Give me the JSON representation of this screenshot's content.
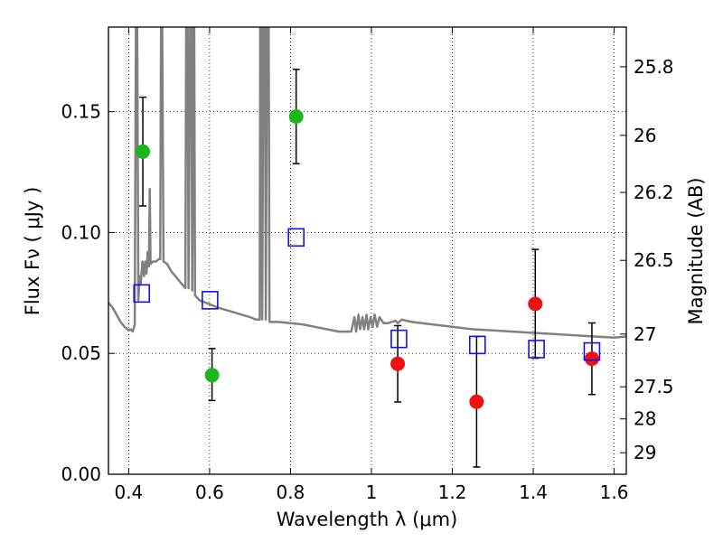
{
  "chart_data": {
    "type": "scatter",
    "xlabel": "Wavelength  λ (μm)",
    "ylabel": "Flux  Fν  ( μJy )",
    "ylabel_right": "Magnitude (AB)",
    "xlim": [
      0.35,
      1.63
    ],
    "ylim": [
      0.0,
      0.185
    ],
    "grid": true,
    "x_ticks": [
      0.4,
      0.6,
      0.8,
      1.0,
      1.2,
      1.4,
      1.6
    ],
    "x_tick_labels": [
      "0.4",
      "0.6",
      "0.8",
      "1",
      "1.2",
      "1.4",
      "1.6"
    ],
    "y_ticks": [
      0.0,
      0.05,
      0.1,
      0.15
    ],
    "y_tick_labels": [
      "0.00",
      "0.05",
      "0.10",
      "0.15"
    ],
    "right_ticks": [
      {
        "label": "25.8",
        "flux": 0.1686
      },
      {
        "label": "26",
        "flux": 0.1402
      },
      {
        "label": "26.2",
        "flux": 0.1166
      },
      {
        "label": "26.5",
        "flux": 0.0885
      },
      {
        "label": "27",
        "flux": 0.058
      },
      {
        "label": "27.5",
        "flux": 0.0362
      },
      {
        "label": "28",
        "flux": 0.0229
      },
      {
        "label": "29",
        "flux": 0.0089
      }
    ],
    "series": [
      {
        "name": "green points",
        "color": "#1db71d",
        "marker": "circle",
        "points": [
          {
            "x": 0.435,
            "y": 0.1335,
            "err_lo": 0.0225,
            "err_hi": 0.0225
          },
          {
            "x": 0.606,
            "y": 0.041,
            "err_lo": 0.0105,
            "err_hi": 0.011
          },
          {
            "x": 0.814,
            "y": 0.148,
            "err_lo": 0.0195,
            "err_hi": 0.0195
          }
        ]
      },
      {
        "name": "red points",
        "color": "#ee1111",
        "marker": "circle",
        "points": [
          {
            "x": 1.065,
            "y": 0.0457,
            "err_lo": 0.0158,
            "err_hi": 0.0158
          },
          {
            "x": 1.26,
            "y": 0.03,
            "err_lo": 0.027,
            "err_hi": 0.027
          },
          {
            "x": 1.405,
            "y": 0.0705,
            "err_lo": 0.0225,
            "err_hi": 0.0225
          },
          {
            "x": 1.545,
            "y": 0.0478,
            "err_lo": 0.0148,
            "err_hi": 0.0148
          }
        ]
      },
      {
        "name": "model photometry",
        "color": "#1111ee",
        "marker": "square-open",
        "points": [
          {
            "x": 0.432,
            "y": 0.0748
          },
          {
            "x": 0.601,
            "y": 0.072
          },
          {
            "x": 0.814,
            "y": 0.098
          },
          {
            "x": 1.068,
            "y": 0.056
          },
          {
            "x": 1.262,
            "y": 0.0535
          },
          {
            "x": 1.408,
            "y": 0.0518
          },
          {
            "x": 1.545,
            "y": 0.0508
          }
        ]
      }
    ],
    "model_spectrum": {
      "name": "SED model",
      "color": "#808080",
      "points": [
        [
          0.35,
          0.071
        ],
        [
          0.36,
          0.069
        ],
        [
          0.37,
          0.066
        ],
        [
          0.38,
          0.063
        ],
        [
          0.39,
          0.061
        ],
        [
          0.4,
          0.0595
        ],
        [
          0.405,
          0.06
        ],
        [
          0.41,
          0.059
        ],
        [
          0.415,
          0.062
        ],
        [
          0.418,
          0.185
        ],
        [
          0.421,
          0.185
        ],
        [
          0.424,
          0.072
        ],
        [
          0.427,
          0.082
        ],
        [
          0.43,
          0.079
        ],
        [
          0.434,
          0.088
        ],
        [
          0.438,
          0.082
        ],
        [
          0.441,
          0.088
        ],
        [
          0.444,
          0.083
        ],
        [
          0.447,
          0.092
        ],
        [
          0.45,
          0.086
        ],
        [
          0.452,
          0.118
        ],
        [
          0.454,
          0.087
        ],
        [
          0.46,
          0.088
        ],
        [
          0.468,
          0.088
        ],
        [
          0.474,
          0.089
        ],
        [
          0.478,
          0.089
        ],
        [
          0.48,
          0.185
        ],
        [
          0.483,
          0.185
        ],
        [
          0.486,
          0.088
        ],
        [
          0.495,
          0.087
        ],
        [
          0.505,
          0.084
        ],
        [
          0.515,
          0.082
        ],
        [
          0.525,
          0.08
        ],
        [
          0.535,
          0.078
        ],
        [
          0.54,
          0.077
        ],
        [
          0.542,
          0.185
        ],
        [
          0.546,
          0.185
        ],
        [
          0.548,
          0.077
        ],
        [
          0.552,
          0.185
        ],
        [
          0.555,
          0.185
        ],
        [
          0.557,
          0.076
        ],
        [
          0.56,
          0.185
        ],
        [
          0.562,
          0.185
        ],
        [
          0.564,
          0.074
        ],
        [
          0.575,
          0.072
        ],
        [
          0.59,
          0.071
        ],
        [
          0.605,
          0.07
        ],
        [
          0.62,
          0.069
        ],
        [
          0.64,
          0.068
        ],
        [
          0.66,
          0.067
        ],
        [
          0.68,
          0.066
        ],
        [
          0.7,
          0.065
        ],
        [
          0.715,
          0.064
        ],
        [
          0.724,
          0.064
        ],
        [
          0.725,
          0.185
        ],
        [
          0.728,
          0.185
        ],
        [
          0.73,
          0.064
        ],
        [
          0.733,
          0.185
        ],
        [
          0.737,
          0.185
        ],
        [
          0.739,
          0.064
        ],
        [
          0.742,
          0.185
        ],
        [
          0.746,
          0.185
        ],
        [
          0.748,
          0.063
        ],
        [
          0.77,
          0.063
        ],
        [
          0.8,
          0.0625
        ],
        [
          0.83,
          0.062
        ],
        [
          0.86,
          0.061
        ],
        [
          0.89,
          0.06
        ],
        [
          0.92,
          0.059
        ],
        [
          0.95,
          0.059
        ],
        [
          0.958,
          0.065
        ],
        [
          0.962,
          0.059
        ],
        [
          0.968,
          0.066
        ],
        [
          0.972,
          0.06
        ],
        [
          0.978,
          0.065
        ],
        [
          0.982,
          0.06
        ],
        [
          0.988,
          0.066
        ],
        [
          0.992,
          0.06
        ],
        [
          0.998,
          0.065
        ],
        [
          1.003,
          0.061
        ],
        [
          1.008,
          0.066
        ],
        [
          1.014,
          0.061
        ],
        [
          1.02,
          0.065
        ],
        [
          1.03,
          0.0625
        ],
        [
          1.04,
          0.0625
        ],
        [
          1.05,
          0.063
        ],
        [
          1.06,
          0.0635
        ],
        [
          1.065,
          0.0625
        ],
        [
          1.075,
          0.064
        ],
        [
          1.1,
          0.063
        ],
        [
          1.15,
          0.062
        ],
        [
          1.2,
          0.061
        ],
        [
          1.25,
          0.06
        ],
        [
          1.3,
          0.0595
        ],
        [
          1.35,
          0.059
        ],
        [
          1.4,
          0.0585
        ],
        [
          1.45,
          0.058
        ],
        [
          1.5,
          0.0575
        ],
        [
          1.55,
          0.057
        ],
        [
          1.6,
          0.0565
        ],
        [
          1.63,
          0.057
        ]
      ]
    }
  }
}
